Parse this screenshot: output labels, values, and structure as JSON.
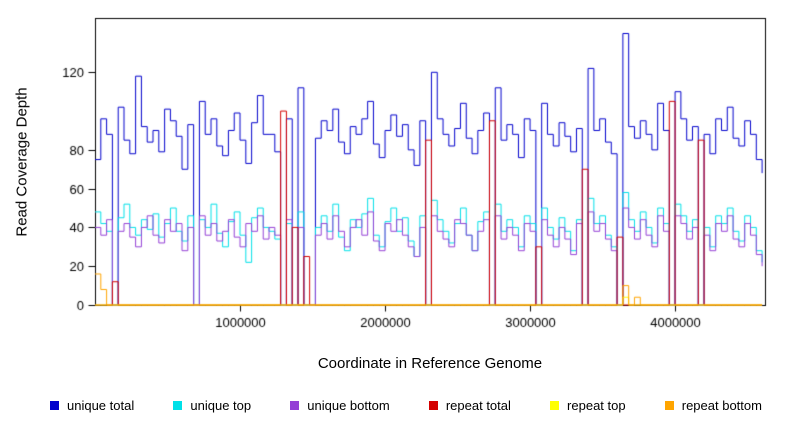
{
  "figure": {
    "ylabel": "Read Coverage Depth",
    "xlabel": "Coordinate in Reference Genome"
  },
  "chart_data": {
    "type": "line",
    "title": "",
    "xlabel": "Coordinate in Reference Genome",
    "ylabel": "Read Coverage Depth",
    "grid": false,
    "legend_position": "bottom",
    "x_start": 0,
    "x_step": 40000,
    "xlim": [
      0,
      4620000
    ],
    "ylim": [
      0,
      148
    ],
    "x_ticks": [
      1000000,
      2000000,
      3000000,
      4000000
    ],
    "y_ticks": [
      0,
      20,
      40,
      60,
      80,
      120
    ],
    "series": [
      {
        "name": "unique total",
        "color": "#0000CC",
        "values": [
          75,
          96,
          88,
          0,
          102,
          85,
          78,
          118,
          92,
          84,
          90,
          79,
          101,
          95,
          87,
          70,
          93,
          0,
          105,
          88,
          96,
          82,
          77,
          90,
          99,
          85,
          73,
          94,
          108,
          88,
          88,
          79,
          0,
          96,
          0,
          112,
          0,
          0,
          86,
          95,
          90,
          101,
          84,
          78,
          92,
          88,
          96,
          105,
          83,
          76,
          90,
          98,
          87,
          93,
          80,
          72,
          95,
          0,
          120,
          96,
          88,
          82,
          91,
          104,
          86,
          78,
          90,
          99,
          0,
          112,
          85,
          93,
          88,
          76,
          96,
          90,
          0,
          104,
          88,
          82,
          94,
          87,
          79,
          91,
          0,
          122,
          90,
          96,
          84,
          78,
          0,
          140,
          92,
          86,
          95,
          88,
          80,
          104,
          90,
          0,
          110,
          96,
          85,
          92,
          0,
          88,
          78,
          96,
          90,
          102,
          86,
          82,
          95,
          88,
          75,
          68
        ]
      },
      {
        "name": "unique top",
        "color": "#00E0E8",
        "values": [
          48,
          42,
          38,
          0,
          45,
          52,
          40,
          36,
          44,
          39,
          47,
          35,
          42,
          50,
          38,
          33,
          46,
          0,
          44,
          40,
          52,
          37,
          30,
          43,
          48,
          36,
          22,
          45,
          50,
          40,
          38,
          34,
          0,
          42,
          0,
          48,
          0,
          0,
          40,
          46,
          38,
          52,
          35,
          28,
          44,
          40,
          47,
          55,
          36,
          30,
          43,
          50,
          38,
          45,
          33,
          25,
          46,
          0,
          54,
          44,
          38,
          32,
          42,
          50,
          36,
          28,
          43,
          48,
          0,
          52,
          38,
          44,
          40,
          30,
          46,
          42,
          0,
          50,
          40,
          34,
          45,
          38,
          28,
          44,
          0,
          55,
          42,
          46,
          36,
          30,
          0,
          58,
          44,
          38,
          48,
          40,
          32,
          50,
          42,
          0,
          52,
          46,
          38,
          44,
          0,
          40,
          30,
          46,
          42,
          50,
          38,
          33,
          46,
          40,
          28,
          22
        ]
      },
      {
        "name": "unique bottom",
        "color": "#9440D6",
        "values": [
          40,
          36,
          44,
          0,
          38,
          42,
          35,
          30,
          40,
          46,
          36,
          32,
          44,
          38,
          42,
          28,
          40,
          0,
          46,
          36,
          42,
          33,
          38,
          44,
          35,
          30,
          42,
          38,
          46,
          34,
          40,
          36,
          0,
          44,
          0,
          40,
          0,
          0,
          36,
          42,
          34,
          46,
          38,
          30,
          40,
          44,
          36,
          48,
          33,
          28,
          42,
          38,
          44,
          36,
          30,
          25,
          40,
          0,
          46,
          38,
          34,
          30,
          44,
          42,
          36,
          28,
          38,
          44,
          0,
          46,
          34,
          40,
          36,
          28,
          42,
          38,
          0,
          44,
          36,
          30,
          40,
          34,
          26,
          42,
          0,
          48,
          38,
          42,
          34,
          28,
          0,
          50,
          40,
          34,
          44,
          36,
          30,
          46,
          38,
          0,
          46,
          42,
          34,
          40,
          0,
          36,
          28,
          42,
          38,
          46,
          34,
          30,
          42,
          36,
          26,
          20
        ]
      },
      {
        "name": "repeat total",
        "color": "#D40000",
        "values": [
          0,
          0,
          0,
          12,
          0,
          0,
          0,
          0,
          0,
          0,
          0,
          0,
          0,
          0,
          0,
          0,
          0,
          0,
          0,
          0,
          0,
          0,
          0,
          0,
          0,
          0,
          0,
          0,
          0,
          0,
          0,
          0,
          100,
          0,
          40,
          0,
          25,
          0,
          0,
          0,
          0,
          0,
          0,
          0,
          0,
          0,
          0,
          0,
          0,
          0,
          0,
          0,
          0,
          0,
          0,
          0,
          0,
          85,
          0,
          0,
          0,
          0,
          0,
          0,
          0,
          0,
          0,
          0,
          95,
          0,
          0,
          0,
          0,
          0,
          0,
          0,
          30,
          0,
          0,
          0,
          0,
          0,
          0,
          0,
          70,
          0,
          0,
          0,
          0,
          0,
          35,
          0,
          0,
          0,
          0,
          0,
          0,
          0,
          0,
          105,
          0,
          0,
          0,
          0,
          85,
          0,
          0,
          0,
          0,
          0,
          0,
          0,
          0,
          0,
          0,
          0
        ]
      },
      {
        "name": "repeat top",
        "color": "#FFFF00",
        "values": [
          0,
          0,
          0,
          0,
          0,
          0,
          0,
          0,
          0,
          0,
          0,
          0,
          0,
          0,
          0,
          0,
          0,
          0,
          0,
          0,
          0,
          0,
          0,
          0,
          0,
          0,
          0,
          0,
          0,
          0,
          0,
          0,
          0,
          0,
          0,
          0,
          0,
          0,
          0,
          0,
          0,
          0,
          0,
          0,
          0,
          0,
          0,
          0,
          0,
          0,
          0,
          0,
          0,
          0,
          0,
          0,
          0,
          0,
          0,
          0,
          0,
          0,
          0,
          0,
          0,
          0,
          0,
          0,
          0,
          0,
          0,
          0,
          0,
          0,
          0,
          0,
          0,
          0,
          0,
          0,
          0,
          0,
          0,
          0,
          0,
          0,
          0,
          0,
          0,
          0,
          0,
          4,
          0,
          0,
          0,
          0,
          0,
          0,
          0,
          0,
          0,
          0,
          0,
          0,
          0,
          0,
          0,
          0,
          0,
          0,
          0,
          0,
          0,
          0,
          0,
          0
        ]
      },
      {
        "name": "repeat bottom",
        "color": "#FFA500",
        "values": [
          16,
          8,
          0,
          0,
          0,
          0,
          0,
          0,
          0,
          0,
          0,
          0,
          0,
          0,
          0,
          0,
          0,
          0,
          0,
          0,
          0,
          0,
          0,
          0,
          0,
          0,
          0,
          0,
          0,
          0,
          0,
          0,
          0,
          0,
          0,
          0,
          0,
          0,
          0,
          0,
          0,
          0,
          0,
          0,
          0,
          0,
          0,
          0,
          0,
          0,
          0,
          0,
          0,
          0,
          0,
          0,
          0,
          0,
          0,
          0,
          0,
          0,
          0,
          0,
          0,
          0,
          0,
          0,
          0,
          0,
          0,
          0,
          0,
          0,
          0,
          0,
          0,
          0,
          0,
          0,
          0,
          0,
          0,
          0,
          0,
          0,
          0,
          0,
          0,
          0,
          0,
          10,
          0,
          4,
          0,
          0,
          0,
          0,
          0,
          0,
          0,
          0,
          0,
          0,
          0,
          0,
          0,
          0,
          0,
          0,
          0,
          0,
          0,
          0,
          0,
          0
        ]
      }
    ]
  }
}
